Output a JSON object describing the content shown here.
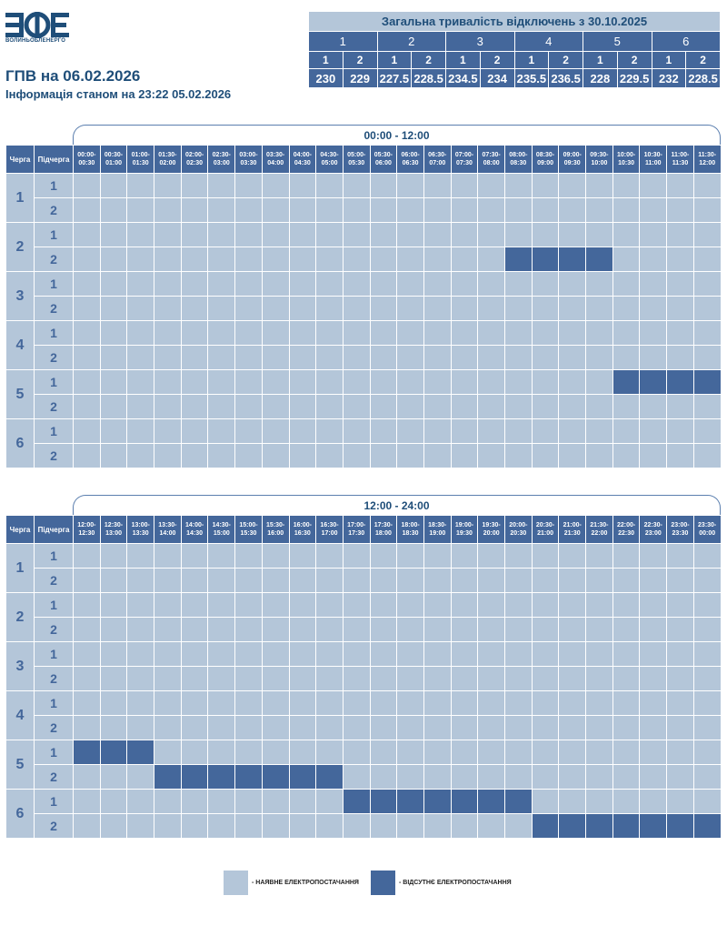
{
  "header": {
    "logo_text": "ВОЛИНЬОБЛЕНЕРГО",
    "title": "ГПВ на 06.02.2026",
    "info": "Інформація станом на 23:22 05.02.2026"
  },
  "summary": {
    "title": "Загальна тривалість відключень з 30.10.2025",
    "queues": [
      "1",
      "2",
      "3",
      "4",
      "5",
      "6"
    ],
    "subqueues": [
      "1",
      "2",
      "1",
      "2",
      "1",
      "2",
      "1",
      "2",
      "1",
      "2",
      "1",
      "2"
    ],
    "values": [
      "230",
      "229",
      "227.5",
      "228.5",
      "234.5",
      "234",
      "235.5",
      "236.5",
      "228",
      "229.5",
      "232",
      "228.5"
    ]
  },
  "grid_header": {
    "queue": "Черга",
    "subqueue": "Підчерга"
  },
  "tables": [
    {
      "period": "00:00 - 12:00",
      "slots": [
        [
          "00:00-",
          "00:30"
        ],
        [
          "00:30-",
          "01:00"
        ],
        [
          "01:00-",
          "01:30"
        ],
        [
          "01:30-",
          "02:00"
        ],
        [
          "02:00-",
          "02:30"
        ],
        [
          "02:30-",
          "03:00"
        ],
        [
          "03:00-",
          "03:30"
        ],
        [
          "03:30-",
          "04:00"
        ],
        [
          "04:00-",
          "04:30"
        ],
        [
          "04:30-",
          "05:00"
        ],
        [
          "05:00-",
          "05:30"
        ],
        [
          "05:30-",
          "06:00"
        ],
        [
          "06:00-",
          "06:30"
        ],
        [
          "06:30-",
          "07:00"
        ],
        [
          "07:00-",
          "07:30"
        ],
        [
          "07:30-",
          "08:00"
        ],
        [
          "08:00-",
          "08:30"
        ],
        [
          "08:30-",
          "09:00"
        ],
        [
          "09:00-",
          "09:30"
        ],
        [
          "09:30-",
          "10:00"
        ],
        [
          "10:00-",
          "10:30"
        ],
        [
          "10:30-",
          "11:00"
        ],
        [
          "11:00-",
          "11:30"
        ],
        [
          "11:30-",
          "12:00"
        ]
      ],
      "rows": [
        {
          "q": "1",
          "sq": "1",
          "cells": "000000000000000000000000"
        },
        {
          "q": "1",
          "sq": "2",
          "cells": "000000000000000000000000"
        },
        {
          "q": "2",
          "sq": "1",
          "cells": "000000000000000000000000"
        },
        {
          "q": "2",
          "sq": "2",
          "cells": "000000000000000011110000"
        },
        {
          "q": "3",
          "sq": "1",
          "cells": "000000000000000000000000"
        },
        {
          "q": "3",
          "sq": "2",
          "cells": "000000000000000000000000"
        },
        {
          "q": "4",
          "sq": "1",
          "cells": "000000000000000000000000"
        },
        {
          "q": "4",
          "sq": "2",
          "cells": "000000000000000000000000"
        },
        {
          "q": "5",
          "sq": "1",
          "cells": "000000000000000000001111"
        },
        {
          "q": "5",
          "sq": "2",
          "cells": "000000000000000000000000"
        },
        {
          "q": "6",
          "sq": "1",
          "cells": "000000000000000000000000"
        },
        {
          "q": "6",
          "sq": "2",
          "cells": "000000000000000000000000"
        }
      ]
    },
    {
      "period": "12:00 - 24:00",
      "slots": [
        [
          "12:00-",
          "12:30"
        ],
        [
          "12:30-",
          "13:00"
        ],
        [
          "13:00-",
          "13:30"
        ],
        [
          "13:30-",
          "14:00"
        ],
        [
          "14:00-",
          "14:30"
        ],
        [
          "14:30-",
          "15:00"
        ],
        [
          "15:00-",
          "15:30"
        ],
        [
          "15:30-",
          "16:00"
        ],
        [
          "16:00-",
          "16:30"
        ],
        [
          "16:30-",
          "17:00"
        ],
        [
          "17:00-",
          "17:30"
        ],
        [
          "17:30-",
          "18:00"
        ],
        [
          "18:00-",
          "18:30"
        ],
        [
          "18:30-",
          "19:00"
        ],
        [
          "19:00-",
          "19:30"
        ],
        [
          "19:30-",
          "20:00"
        ],
        [
          "20:00-",
          "20:30"
        ],
        [
          "20:30-",
          "21:00"
        ],
        [
          "21:00-",
          "21:30"
        ],
        [
          "21:30-",
          "22:00"
        ],
        [
          "22:00-",
          "22:30"
        ],
        [
          "22:30-",
          "23:00"
        ],
        [
          "23:00-",
          "23:30"
        ],
        [
          "23:30-",
          "00:00"
        ]
      ],
      "rows": [
        {
          "q": "1",
          "sq": "1",
          "cells": "000000000000000000000000"
        },
        {
          "q": "1",
          "sq": "2",
          "cells": "000000000000000000000000"
        },
        {
          "q": "2",
          "sq": "1",
          "cells": "000000000000000000000000"
        },
        {
          "q": "2",
          "sq": "2",
          "cells": "000000000000000000000000"
        },
        {
          "q": "3",
          "sq": "1",
          "cells": "000000000000000000000000"
        },
        {
          "q": "3",
          "sq": "2",
          "cells": "000000000000000000000000"
        },
        {
          "q": "4",
          "sq": "1",
          "cells": "000000000000000000000000"
        },
        {
          "q": "4",
          "sq": "2",
          "cells": "000000000000000000000000"
        },
        {
          "q": "5",
          "sq": "1",
          "cells": "111000000000000000000000"
        },
        {
          "q": "5",
          "sq": "2",
          "cells": "000111111100000000000000"
        },
        {
          "q": "6",
          "sq": "1",
          "cells": "000000000011111110000000"
        },
        {
          "q": "6",
          "sq": "2",
          "cells": "000000000000000001111111"
        }
      ]
    }
  ],
  "legend": {
    "on_label": "- НАЯВНЕ ЕЛЕКТРОПОСТАЧАННЯ",
    "off_label": "- ВІДСУТНЄ ЕЛЕКТРОПОСТАЧАННЯ"
  },
  "colors": {
    "on": "#b4c6d9",
    "off": "#44679b",
    "header": "#44679b",
    "text": "#1f4e79"
  }
}
